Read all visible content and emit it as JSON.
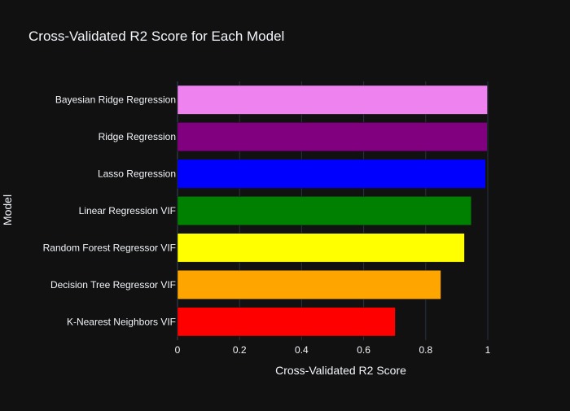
{
  "chart_data": {
    "type": "bar",
    "orientation": "horizontal",
    "title": "Cross-Validated R2 Score for Each Model",
    "xlabel": "Cross-Validated R2 Score",
    "ylabel": "Model",
    "xlim": [
      0,
      1
    ],
    "xticks": [
      0,
      0.2,
      0.4,
      0.6,
      0.8,
      1
    ],
    "xtick_labels": [
      "0",
      "0.2",
      "0.4",
      "0.6",
      "0.8",
      "1"
    ],
    "grid": true,
    "categories": [
      "K-Nearest Neighbors VIF",
      "Decision Tree Regressor VIF",
      "Random Forest Regressor VIF",
      "Linear Regression VIF",
      "Lasso Regression",
      "Ridge Regression",
      "Bayesian Ridge Regression"
    ],
    "values": [
      0.702,
      0.849,
      0.925,
      0.947,
      0.993,
      0.998,
      0.999
    ],
    "colors": [
      "#ff0000",
      "#ffa500",
      "#ffff00",
      "#008000",
      "#0000ff",
      "#800080",
      "#ee82ee"
    ]
  },
  "theme": {
    "background": "#111111",
    "grid_color": "#283442",
    "text_color": "#f2f5fa"
  }
}
